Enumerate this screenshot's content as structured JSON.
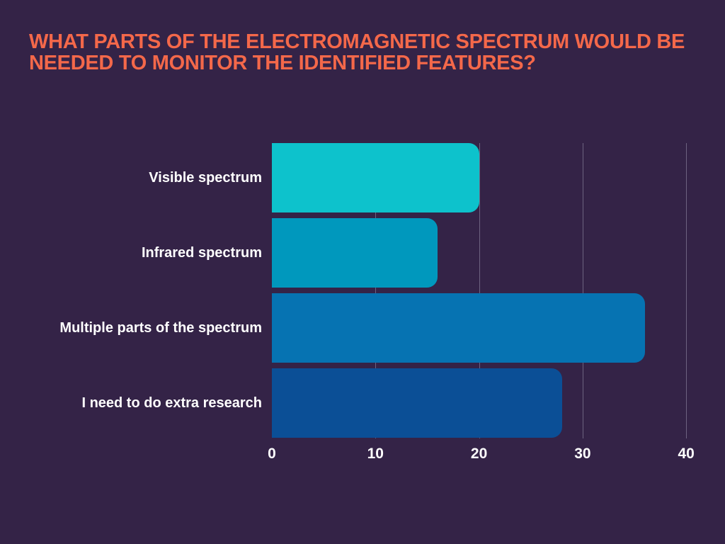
{
  "colors": {
    "background": "#342347",
    "title": "#f4684a",
    "label": "#ffffff",
    "tick": "#ffffff",
    "gridline": "#6d6380"
  },
  "chart_data": {
    "type": "bar",
    "orientation": "horizontal",
    "title": "WHAT PARTS OF THE ELECTROMAGNETIC SPECTRUM WOULD BE NEEDED TO MONITOR THE IDENTIFIED FEATURES?",
    "title_lines": [
      "WHAT PARTS OF THE ELECTROMAGNETIC SPECTRUM WOULD BE",
      "NEEDED TO MONITOR THE IDENTIFIED FEATURES?"
    ],
    "categories": [
      "Visible spectrum",
      "Infrared spectrum",
      "Multiple parts of the spectrum",
      "I need to do extra research"
    ],
    "values": [
      20,
      16,
      36,
      28
    ],
    "bar_colors": [
      "#0dc2cc",
      "#0098bd",
      "#0673b2",
      "#0b4f96"
    ],
    "x_ticks": [
      0,
      10,
      20,
      30,
      40
    ],
    "xlim": [
      0,
      40
    ],
    "xlabel": "",
    "ylabel": "",
    "grid": "vertical-gridlines-at-10-20-30-40",
    "legend": "none"
  }
}
